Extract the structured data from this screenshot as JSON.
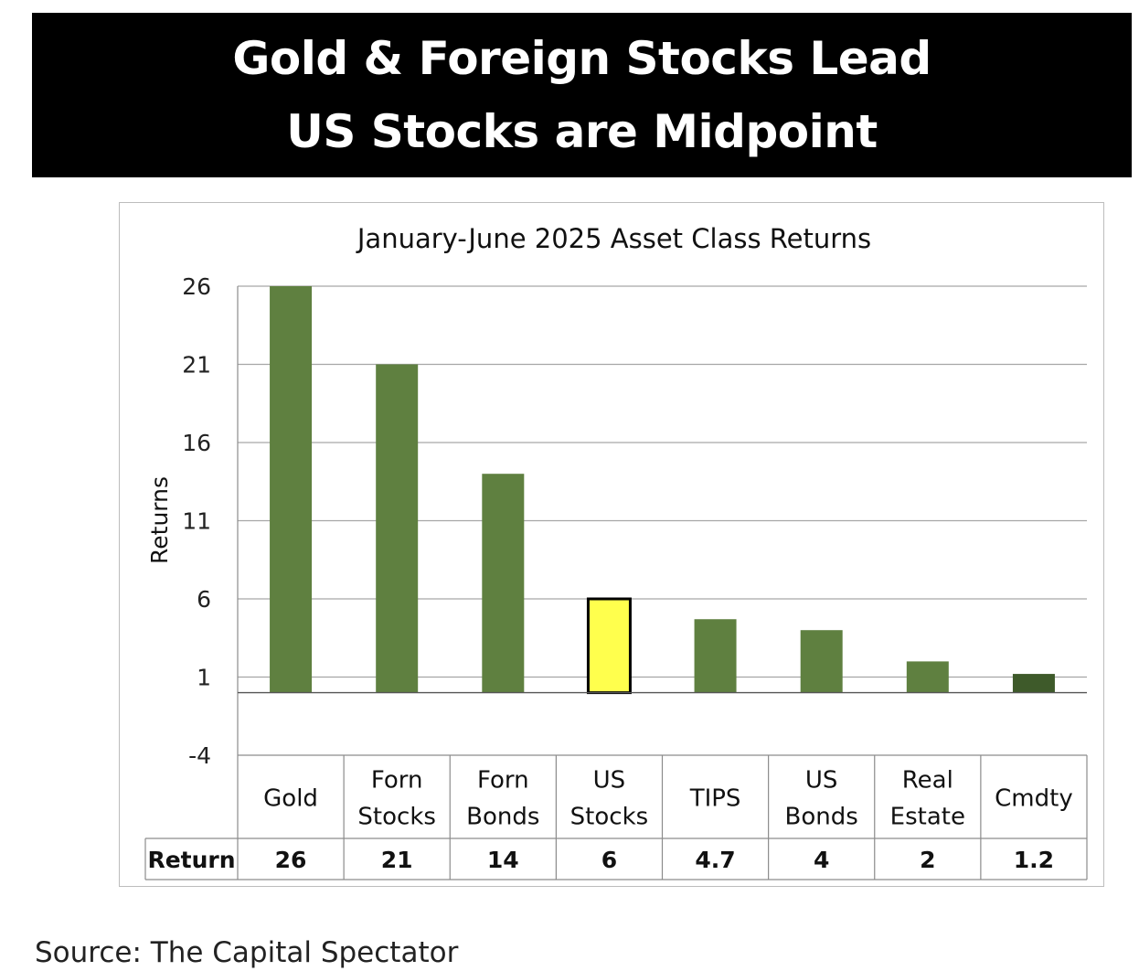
{
  "banner": {
    "line1": "Gold & Foreign Stocks Lead",
    "line2": "US Stocks are Midpoint"
  },
  "source": "Source: The Capital Spectator",
  "colors": {
    "bar": "#5f8040",
    "highlight": "#ffff4d",
    "last_bar": "#3e5a2a",
    "grid": "#a6a6a6"
  },
  "chart_data": {
    "type": "bar",
    "title": "January-June  2025 Asset Class Returns",
    "ylabel": "Returns",
    "ylim": [
      -4,
      26
    ],
    "yticks": [
      "26",
      "21",
      "16",
      "11",
      "6",
      "1",
      "-4"
    ],
    "categories": [
      [
        "Gold"
      ],
      [
        "Forn",
        "Stocks"
      ],
      [
        "Forn",
        "Bonds"
      ],
      [
        "US",
        "Stocks"
      ],
      [
        "TIPS"
      ],
      [
        "US",
        "Bonds"
      ],
      [
        "Real",
        "Estate"
      ],
      [
        "Cmdty"
      ]
    ],
    "values": [
      26,
      21,
      14,
      6,
      4.7,
      4,
      2,
      1.2
    ],
    "highlight_index": 3,
    "table": {
      "row_label": "Return",
      "cells": [
        "26",
        "21",
        "14",
        "6",
        "4.7",
        "4",
        "2",
        "1.2"
      ]
    },
    "grid": true,
    "legend": "none"
  }
}
